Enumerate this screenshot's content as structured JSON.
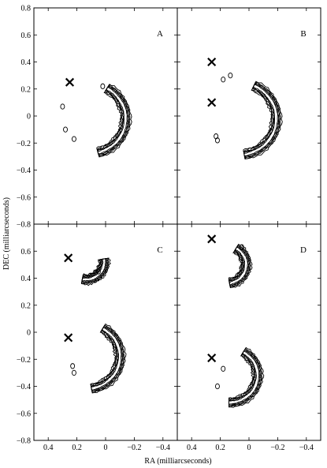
{
  "chart_data": {
    "type": "contour",
    "layout": "2x2 panels, shared axes",
    "xlabel": "RA (milliarcseconds)",
    "ylabel": "DEC (milliarcseconds)",
    "xlim": [
      0.5,
      -0.5
    ],
    "ylim": [
      -0.8,
      0.8
    ],
    "x_ticks": [
      0.4,
      0.2,
      0,
      -0.2,
      -0.4
    ],
    "x_tick_labels": [
      "0.4",
      "0.2",
      "0",
      "−0.2",
      "−0.4"
    ],
    "y_ticks": [
      0.8,
      0.6,
      0.4,
      0.2,
      0,
      -0.2,
      -0.4,
      -0.6,
      -0.8
    ],
    "y_tick_labels": [
      "0.8",
      "0.6",
      "0.4",
      "0.2",
      "0",
      "−0.2",
      "−0.4",
      "−0.6",
      "−0.8"
    ],
    "panels": [
      {
        "label": "A",
        "markers": [
          {
            "ra": 0.25,
            "dec": 0.25
          }
        ],
        "arcs": [
          {
            "cx": 0.12,
            "cy": -0.02,
            "r": 0.26,
            "start_deg": 60,
            "end_deg": -75
          }
        ],
        "blobs": [
          {
            "ra": 0.3,
            "dec": 0.07
          },
          {
            "ra": 0.28,
            "dec": -0.1
          },
          {
            "ra": 0.22,
            "dec": -0.17
          },
          {
            "ra": 0.02,
            "dec": 0.22
          }
        ]
      },
      {
        "label": "B",
        "markers": [
          {
            "ra": 0.26,
            "dec": 0.4
          },
          {
            "ra": 0.26,
            "dec": 0.1
          }
        ],
        "arcs": [
          {
            "cx": 0.08,
            "cy": -0.02,
            "r": 0.27,
            "start_deg": 65,
            "end_deg": -80
          }
        ],
        "blobs": [
          {
            "ra": 0.23,
            "dec": -0.15
          },
          {
            "ra": 0.18,
            "dec": 0.27
          },
          {
            "ra": 0.13,
            "dec": 0.3
          },
          {
            "ra": 0.22,
            "dec": -0.18
          }
        ]
      },
      {
        "label": "C",
        "markers": [
          {
            "ra": 0.26,
            "dec": 0.55
          },
          {
            "ra": 0.26,
            "dec": -0.04
          }
        ],
        "arcs": [
          {
            "cx": 0.14,
            "cy": 0.52,
            "r": 0.13,
            "start_deg": 10,
            "end_deg": -100
          },
          {
            "cx": 0.14,
            "cy": -0.18,
            "r": 0.24,
            "start_deg": 60,
            "end_deg": -80
          }
        ],
        "blobs": [
          {
            "ra": 0.23,
            "dec": -0.25
          },
          {
            "ra": 0.05,
            "dec": 0.45
          },
          {
            "ra": 0.22,
            "dec": -0.3
          }
        ]
      },
      {
        "label": "D",
        "markers": [
          {
            "ra": 0.26,
            "dec": 0.69
          },
          {
            "ra": 0.26,
            "dec": -0.19
          }
        ],
        "arcs": [
          {
            "cx": 0.16,
            "cy": 0.5,
            "r": 0.14,
            "start_deg": 60,
            "end_deg": -80
          },
          {
            "cx": 0.14,
            "cy": -0.32,
            "r": 0.2,
            "start_deg": 60,
            "end_deg": -90
          }
        ],
        "blobs": [
          {
            "ra": 0.22,
            "dec": -0.4
          },
          {
            "ra": 0.05,
            "dec": 0.63
          },
          {
            "ra": 0.18,
            "dec": -0.27
          }
        ]
      }
    ]
  }
}
